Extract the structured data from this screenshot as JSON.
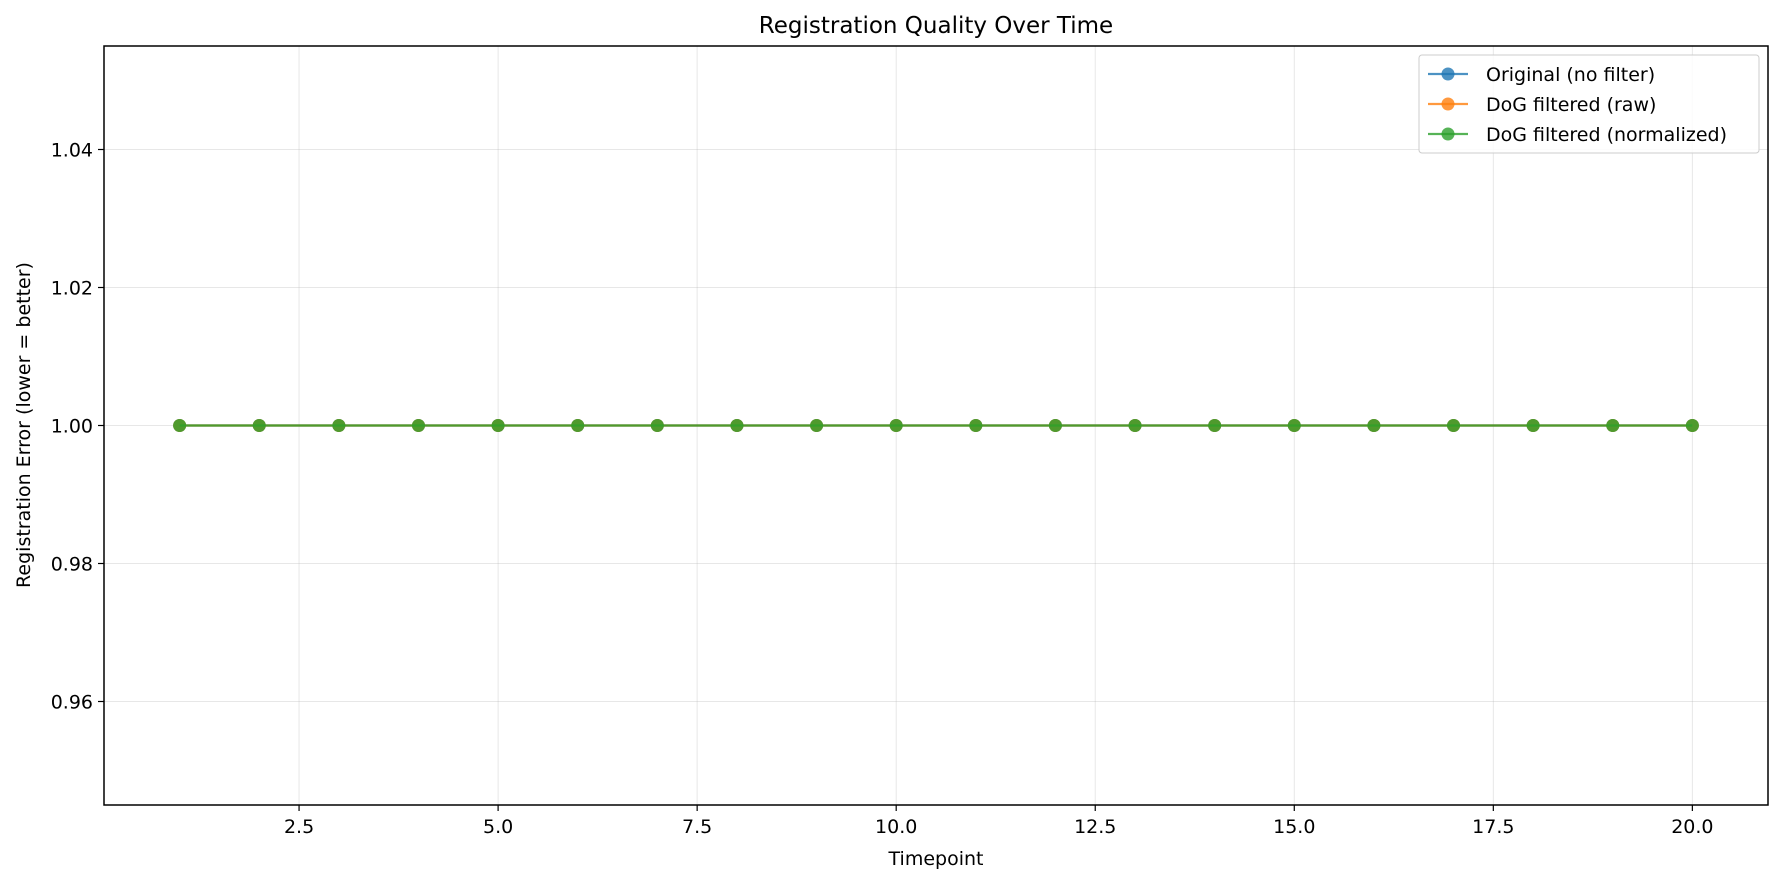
{
  "chart_data": {
    "type": "line",
    "title": "Registration Quality Over Time",
    "xlabel": "Timepoint",
    "ylabel": "Registration Error (lower = better)",
    "xlim": [
      0.05,
      20.95
    ],
    "ylim": [
      0.945,
      1.055
    ],
    "x_ticks": [
      2.5,
      5.0,
      7.5,
      10.0,
      12.5,
      15.0,
      17.5,
      20.0
    ],
    "x_tick_labels": [
      "2.5",
      "5.0",
      "7.5",
      "10.0",
      "12.5",
      "15.0",
      "17.5",
      "20.0"
    ],
    "y_ticks": [
      0.96,
      0.98,
      1.0,
      1.02,
      1.04
    ],
    "y_tick_labels": [
      "0.96",
      "0.98",
      "1.00",
      "1.02",
      "1.04"
    ],
    "grid": true,
    "legend_position": "top-right",
    "x": [
      1,
      2,
      3,
      4,
      5,
      6,
      7,
      8,
      9,
      10,
      11,
      12,
      13,
      14,
      15,
      16,
      17,
      18,
      19,
      20
    ],
    "series": [
      {
        "name": "Original (no filter)",
        "color": "#1f77b4",
        "values": [
          1,
          1,
          1,
          1,
          1,
          1,
          1,
          1,
          1,
          1,
          1,
          1,
          1,
          1,
          1,
          1,
          1,
          1,
          1,
          1
        ]
      },
      {
        "name": "DoG filtered (raw)",
        "color": "#ff7f0e",
        "values": [
          1,
          1,
          1,
          1,
          1,
          1,
          1,
          1,
          1,
          1,
          1,
          1,
          1,
          1,
          1,
          1,
          1,
          1,
          1,
          1
        ]
      },
      {
        "name": "DoG filtered (normalized)",
        "color": "#2ca02c",
        "values": [
          1,
          1,
          1,
          1,
          1,
          1,
          1,
          1,
          1,
          1,
          1,
          1,
          1,
          1,
          1,
          1,
          1,
          1,
          1,
          1
        ]
      }
    ]
  }
}
